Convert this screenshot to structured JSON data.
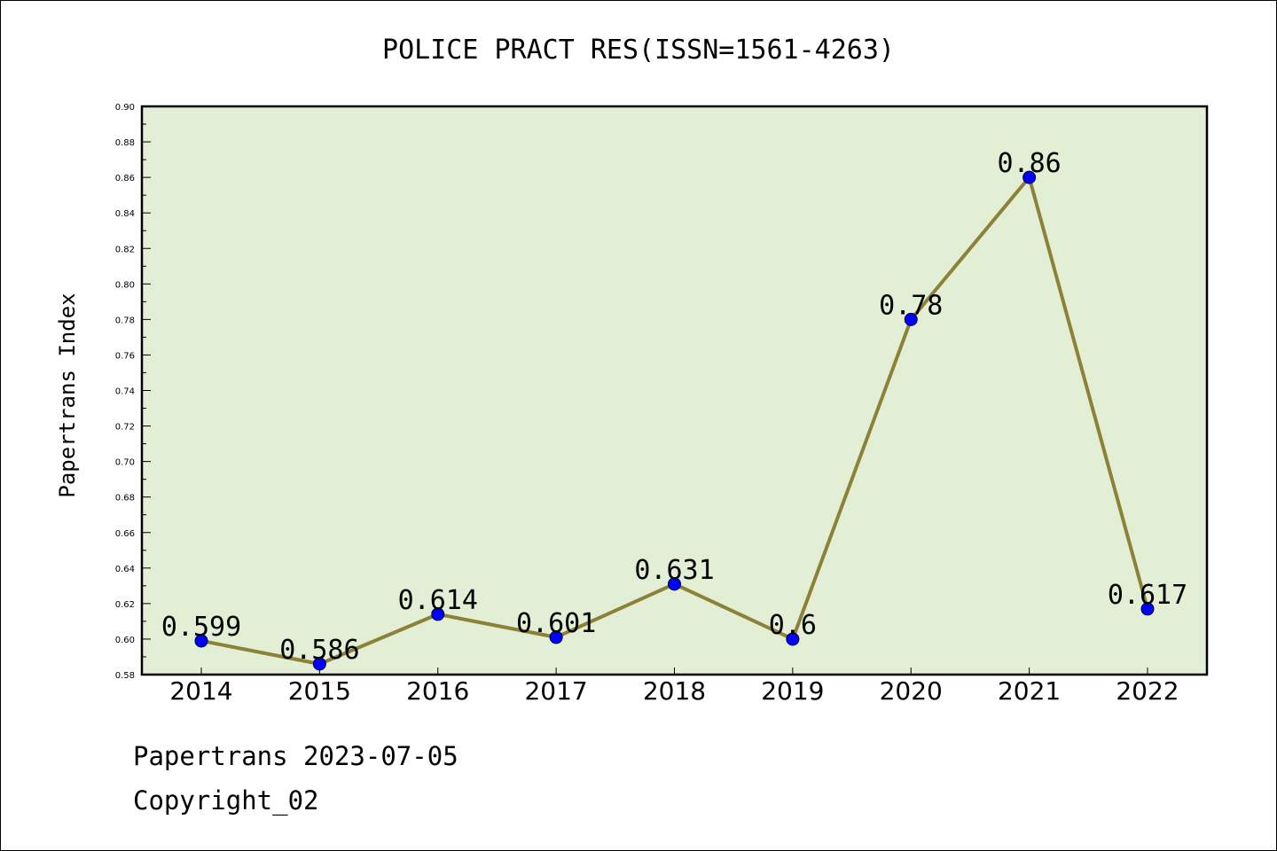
{
  "chart_data": {
    "type": "line",
    "title": "POLICE PRACT RES(ISSN=1561-4263)",
    "xlabel": "",
    "ylabel": "Papertrans Index",
    "categories": [
      "2014",
      "2015",
      "2016",
      "2017",
      "2018",
      "2019",
      "2020",
      "2021",
      "2022"
    ],
    "values": [
      0.599,
      0.586,
      0.614,
      0.601,
      0.631,
      0.6,
      0.78,
      0.86,
      0.617
    ],
    "value_labels": [
      "0.599",
      "0.586",
      "0.614",
      "0.601",
      "0.631",
      "0.6",
      "0.78",
      "0.86",
      "0.617"
    ],
    "ylim": [
      0.58,
      0.9
    ],
    "yticks": [
      "0.58",
      "0.60",
      "0.62",
      "0.64",
      "0.66",
      "0.68",
      "0.70",
      "0.72",
      "0.74",
      "0.76",
      "0.78",
      "0.80",
      "0.82",
      "0.84",
      "0.86",
      "0.88",
      "0.90"
    ],
    "grid": false,
    "colors": {
      "plot_background": "#e2efd5",
      "line": "#8b8137",
      "marker": "#0000ff"
    }
  },
  "footer": {
    "line1": "Papertrans 2023-07-05",
    "line2": "Copyright_02"
  }
}
